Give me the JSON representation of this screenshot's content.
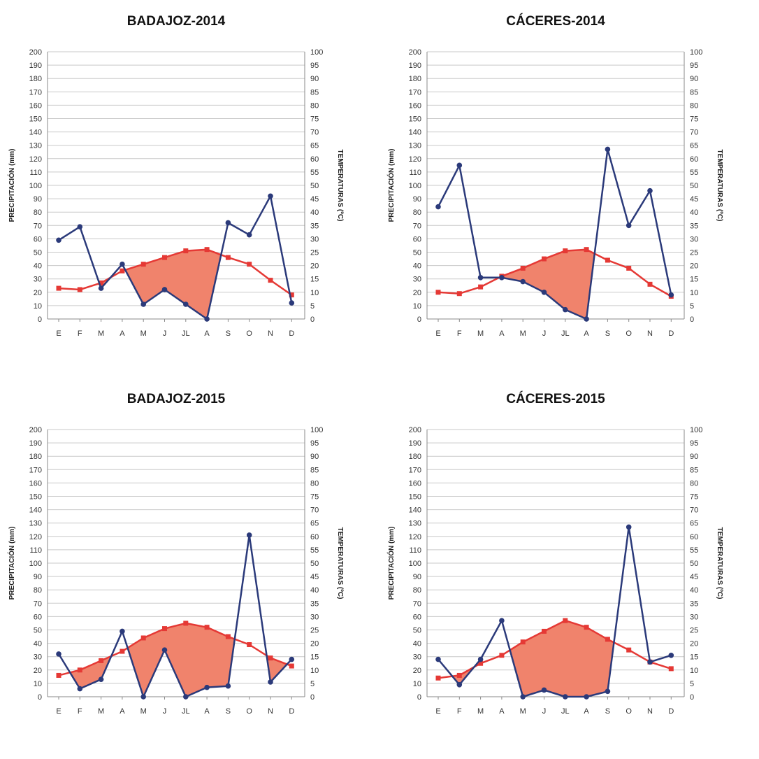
{
  "chart_data": [
    {
      "type": "line",
      "title": "BADAJOZ-2014",
      "ylabel": "PRECIPITACIÓN (mm)",
      "y2label": "TEMPERATURAS (ºC)",
      "categories": [
        "E",
        "F",
        "M",
        "A",
        "M",
        "J",
        "JL",
        "A",
        "S",
        "O",
        "N",
        "D"
      ],
      "ylim": [
        0,
        200
      ],
      "y2lim": [
        0,
        100
      ],
      "yticks": [
        0,
        10,
        20,
        30,
        40,
        50,
        60,
        70,
        80,
        90,
        100,
        110,
        120,
        130,
        140,
        150,
        160,
        170,
        180,
        190,
        200
      ],
      "y2ticks": [
        0,
        5,
        10,
        15,
        20,
        25,
        30,
        35,
        40,
        45,
        50,
        55,
        60,
        65,
        70,
        75,
        80,
        85,
        90,
        95,
        100
      ],
      "grid": true,
      "series": [
        {
          "axis": "left",
          "color": "#2b3a7a",
          "marker": "circle",
          "values": [
            59,
            69,
            23,
            41,
            11,
            22,
            11,
            0,
            72,
            63,
            92,
            12
          ]
        },
        {
          "axis": "right",
          "color": "#e53935",
          "marker": "square",
          "values": [
            11.5,
            11,
            13.5,
            18,
            20.5,
            23,
            25.5,
            26,
            23,
            20.5,
            14.5,
            9
          ]
        }
      ],
      "fill_color": "#f0836c"
    },
    {
      "type": "line",
      "title": "CÁCERES-2014",
      "ylabel": "PRECIPITACIÓN (mm)",
      "y2label": "TEMPERATURAS (ºC)",
      "categories": [
        "E",
        "F",
        "M",
        "A",
        "M",
        "J",
        "JL",
        "A",
        "S",
        "O",
        "N",
        "D"
      ],
      "ylim": [
        0,
        200
      ],
      "y2lim": [
        0,
        100
      ],
      "yticks": [
        0,
        10,
        20,
        30,
        40,
        50,
        60,
        70,
        80,
        90,
        100,
        110,
        120,
        130,
        140,
        150,
        160,
        170,
        180,
        190,
        200
      ],
      "y2ticks": [
        0,
        5,
        10,
        15,
        20,
        25,
        30,
        35,
        40,
        45,
        50,
        55,
        60,
        65,
        70,
        75,
        80,
        85,
        90,
        95,
        100
      ],
      "grid": true,
      "series": [
        {
          "axis": "left",
          "color": "#2b3a7a",
          "marker": "circle",
          "values": [
            84,
            115,
            31,
            31,
            28,
            20,
            7,
            0,
            127,
            70,
            96,
            18
          ]
        },
        {
          "axis": "right",
          "color": "#e53935",
          "marker": "square",
          "values": [
            10,
            9.5,
            12,
            16,
            19,
            22.5,
            25.5,
            26,
            22,
            19,
            13,
            8.5
          ]
        }
      ],
      "fill_color": "#f0836c"
    },
    {
      "type": "line",
      "title": "BADAJOZ-2015",
      "ylabel": "PRECIPITACIÓN (mm)",
      "y2label": "TEMPERATURAS (ºC)",
      "categories": [
        "E",
        "F",
        "M",
        "A",
        "M",
        "J",
        "JL",
        "A",
        "S",
        "O",
        "N",
        "D"
      ],
      "ylim": [
        0,
        200
      ],
      "y2lim": [
        0,
        100
      ],
      "yticks": [
        0,
        10,
        20,
        30,
        40,
        50,
        60,
        70,
        80,
        90,
        100,
        110,
        120,
        130,
        140,
        150,
        160,
        170,
        180,
        190,
        200
      ],
      "y2ticks": [
        0,
        5,
        10,
        15,
        20,
        25,
        30,
        35,
        40,
        45,
        50,
        55,
        60,
        65,
        70,
        75,
        80,
        85,
        90,
        95,
        100
      ],
      "grid": true,
      "series": [
        {
          "axis": "left",
          "color": "#2b3a7a",
          "marker": "circle",
          "values": [
            32,
            6,
            13,
            49,
            0,
            35,
            0,
            7,
            8,
            121,
            11,
            28
          ]
        },
        {
          "axis": "right",
          "color": "#e53935",
          "marker": "square",
          "values": [
            8,
            10,
            13.5,
            17,
            22,
            25.5,
            27.5,
            26,
            22.5,
            19.5,
            14.5,
            11.5
          ]
        }
      ],
      "fill_color": "#f0836c"
    },
    {
      "type": "line",
      "title": "CÁCERES-2015",
      "ylabel": "PRECIPITACIÓN (mm)",
      "y2label": "TEMPERATURAS (ºC)",
      "categories": [
        "E",
        "F",
        "M",
        "A",
        "M",
        "J",
        "JL",
        "A",
        "S",
        "O",
        "N",
        "D"
      ],
      "ylim": [
        0,
        200
      ],
      "y2lim": [
        0,
        100
      ],
      "yticks": [
        0,
        10,
        20,
        30,
        40,
        50,
        60,
        70,
        80,
        90,
        100,
        110,
        120,
        130,
        140,
        150,
        160,
        170,
        180,
        190,
        200
      ],
      "y2ticks": [
        0,
        5,
        10,
        15,
        20,
        25,
        30,
        35,
        40,
        45,
        50,
        55,
        60,
        65,
        70,
        75,
        80,
        85,
        90,
        95,
        100
      ],
      "grid": true,
      "series": [
        {
          "axis": "left",
          "color": "#2b3a7a",
          "marker": "circle",
          "values": [
            28,
            9,
            28,
            57,
            0,
            5,
            0,
            0,
            4,
            127,
            26,
            31
          ]
        },
        {
          "axis": "right",
          "color": "#e53935",
          "marker": "square",
          "values": [
            7,
            8,
            12.5,
            15.5,
            20.5,
            24.5,
            28.5,
            26,
            21.5,
            17.5,
            13,
            10.5
          ]
        }
      ],
      "fill_color": "#f0836c"
    }
  ]
}
